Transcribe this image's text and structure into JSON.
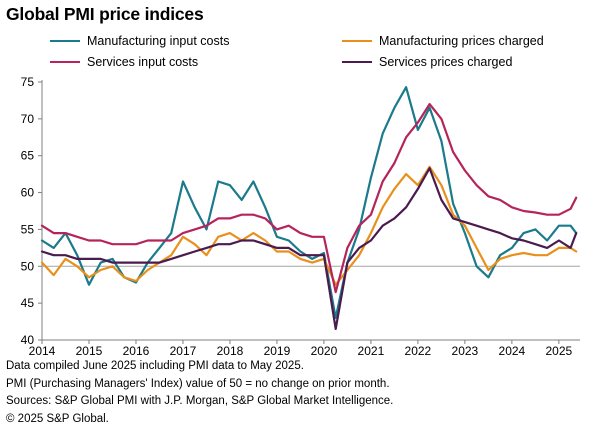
{
  "title": "Global PMI price indices",
  "footnotes": [
    "Data compiled June 2025 including PMI data to May 2025.",
    "PMI (Purchasing Managers' Index) value of 50 = no change on prior month.",
    "Sources: S&P Global PMI with J.P. Morgan, S&P Global Market Intelligence.",
    "© 2025 S&P Global."
  ],
  "chart_data": {
    "type": "line",
    "title": "Global PMI price indices",
    "xlabel": "",
    "ylabel": "",
    "xlim": [
      2014.0,
      2025.45
    ],
    "ylim": [
      40,
      75
    ],
    "x_ticks": [
      "2014",
      "2015",
      "2016",
      "2017",
      "2018",
      "2019",
      "2020",
      "2021",
      "2022",
      "2023",
      "2024",
      "2025"
    ],
    "y_ticks": [
      "40",
      "45",
      "50",
      "55",
      "60",
      "65",
      "70",
      "75"
    ],
    "reference_line": 50,
    "grid": false,
    "legend_position": "top",
    "series": [
      {
        "name": "Manufacturing input costs",
        "color": "#1b7a8c",
        "points": [
          [
            2014.0,
            53.5
          ],
          [
            2014.25,
            52.5
          ],
          [
            2014.5,
            54.5
          ],
          [
            2014.75,
            51.5
          ],
          [
            2015.0,
            47.5
          ],
          [
            2015.25,
            50.5
          ],
          [
            2015.5,
            51.0
          ],
          [
            2015.75,
            48.5
          ],
          [
            2016.0,
            47.8
          ],
          [
            2016.25,
            50.5
          ],
          [
            2016.5,
            52.5
          ],
          [
            2016.75,
            54.5
          ],
          [
            2017.0,
            61.5
          ],
          [
            2017.25,
            58.0
          ],
          [
            2017.5,
            55.0
          ],
          [
            2017.75,
            61.5
          ],
          [
            2018.0,
            61.0
          ],
          [
            2018.25,
            59.0
          ],
          [
            2018.5,
            61.5
          ],
          [
            2018.75,
            58.0
          ],
          [
            2019.0,
            54.0
          ],
          [
            2019.25,
            53.5
          ],
          [
            2019.5,
            52.0
          ],
          [
            2019.75,
            51.0
          ],
          [
            2020.0,
            51.8
          ],
          [
            2020.25,
            43.0
          ],
          [
            2020.5,
            50.5
          ],
          [
            2020.75,
            55.0
          ],
          [
            2021.0,
            62.0
          ],
          [
            2021.25,
            68.0
          ],
          [
            2021.5,
            71.5
          ],
          [
            2021.75,
            74.3
          ],
          [
            2022.0,
            68.5
          ],
          [
            2022.25,
            71.5
          ],
          [
            2022.5,
            67.0
          ],
          [
            2022.75,
            58.5
          ],
          [
            2023.0,
            54.5
          ],
          [
            2023.25,
            50.0
          ],
          [
            2023.5,
            48.5
          ],
          [
            2023.75,
            51.5
          ],
          [
            2024.0,
            52.5
          ],
          [
            2024.25,
            54.5
          ],
          [
            2024.5,
            55.0
          ],
          [
            2024.75,
            53.5
          ],
          [
            2025.0,
            55.5
          ],
          [
            2025.25,
            55.5
          ],
          [
            2025.37,
            54.5
          ]
        ]
      },
      {
        "name": "Manufacturing prices charged",
        "color": "#e8901c",
        "points": [
          [
            2014.0,
            50.5
          ],
          [
            2014.25,
            48.8
          ],
          [
            2014.5,
            51.0
          ],
          [
            2014.75,
            50.0
          ],
          [
            2015.0,
            48.5
          ],
          [
            2015.25,
            49.5
          ],
          [
            2015.5,
            50.0
          ],
          [
            2015.75,
            48.5
          ],
          [
            2016.0,
            48.0
          ],
          [
            2016.25,
            49.5
          ],
          [
            2016.5,
            50.5
          ],
          [
            2016.75,
            51.5
          ],
          [
            2017.0,
            54.0
          ],
          [
            2017.25,
            53.0
          ],
          [
            2017.5,
            51.5
          ],
          [
            2017.75,
            54.0
          ],
          [
            2018.0,
            54.5
          ],
          [
            2018.25,
            53.5
          ],
          [
            2018.5,
            54.5
          ],
          [
            2018.75,
            53.5
          ],
          [
            2019.0,
            52.0
          ],
          [
            2019.25,
            52.0
          ],
          [
            2019.5,
            51.0
          ],
          [
            2019.75,
            50.5
          ],
          [
            2020.0,
            51.0
          ],
          [
            2020.25,
            47.5
          ],
          [
            2020.5,
            49.5
          ],
          [
            2020.75,
            51.5
          ],
          [
            2021.0,
            54.5
          ],
          [
            2021.25,
            58.0
          ],
          [
            2021.5,
            60.5
          ],
          [
            2021.75,
            62.5
          ],
          [
            2022.0,
            61.0
          ],
          [
            2022.25,
            63.5
          ],
          [
            2022.5,
            61.0
          ],
          [
            2022.75,
            57.0
          ],
          [
            2023.0,
            55.5
          ],
          [
            2023.25,
            52.5
          ],
          [
            2023.5,
            49.5
          ],
          [
            2023.75,
            51.0
          ],
          [
            2024.0,
            51.5
          ],
          [
            2024.25,
            51.8
          ],
          [
            2024.5,
            51.5
          ],
          [
            2024.75,
            51.5
          ],
          [
            2025.0,
            52.5
          ],
          [
            2025.25,
            52.5
          ],
          [
            2025.37,
            52.0
          ]
        ]
      },
      {
        "name": "Services input costs",
        "color": "#b5245a",
        "points": [
          [
            2014.0,
            55.5
          ],
          [
            2014.25,
            54.5
          ],
          [
            2014.5,
            54.5
          ],
          [
            2014.75,
            54.0
          ],
          [
            2015.0,
            53.5
          ],
          [
            2015.25,
            53.5
          ],
          [
            2015.5,
            53.0
          ],
          [
            2015.75,
            53.0
          ],
          [
            2016.0,
            53.0
          ],
          [
            2016.25,
            53.5
          ],
          [
            2016.5,
            53.5
          ],
          [
            2016.75,
            53.5
          ],
          [
            2017.0,
            54.5
          ],
          [
            2017.25,
            55.0
          ],
          [
            2017.5,
            55.5
          ],
          [
            2017.75,
            56.5
          ],
          [
            2018.0,
            56.5
          ],
          [
            2018.25,
            57.0
          ],
          [
            2018.5,
            57.0
          ],
          [
            2018.75,
            56.5
          ],
          [
            2019.0,
            55.0
          ],
          [
            2019.25,
            55.5
          ],
          [
            2019.5,
            54.5
          ],
          [
            2019.75,
            54.0
          ],
          [
            2020.0,
            54.0
          ],
          [
            2020.25,
            46.5
          ],
          [
            2020.5,
            52.5
          ],
          [
            2020.75,
            55.5
          ],
          [
            2021.0,
            57.0
          ],
          [
            2021.25,
            61.5
          ],
          [
            2021.5,
            64.0
          ],
          [
            2021.75,
            67.5
          ],
          [
            2022.0,
            69.5
          ],
          [
            2022.25,
            72.0
          ],
          [
            2022.5,
            70.0
          ],
          [
            2022.75,
            65.5
          ],
          [
            2023.0,
            63.0
          ],
          [
            2023.25,
            61.0
          ],
          [
            2023.5,
            59.5
          ],
          [
            2023.75,
            59.0
          ],
          [
            2024.0,
            58.0
          ],
          [
            2024.25,
            57.5
          ],
          [
            2024.5,
            57.3
          ],
          [
            2024.75,
            57.0
          ],
          [
            2025.0,
            57.0
          ],
          [
            2025.25,
            57.8
          ],
          [
            2025.37,
            59.3
          ]
        ]
      },
      {
        "name": "Services prices charged",
        "color": "#4b1a4e",
        "points": [
          [
            2014.0,
            52.0
          ],
          [
            2014.25,
            51.5
          ],
          [
            2014.5,
            51.5
          ],
          [
            2014.75,
            51.0
          ],
          [
            2015.0,
            51.0
          ],
          [
            2015.25,
            51.0
          ],
          [
            2015.5,
            50.5
          ],
          [
            2015.75,
            50.5
          ],
          [
            2016.0,
            50.5
          ],
          [
            2016.25,
            50.5
          ],
          [
            2016.5,
            50.5
          ],
          [
            2016.75,
            51.0
          ],
          [
            2017.0,
            51.5
          ],
          [
            2017.25,
            52.0
          ],
          [
            2017.5,
            52.5
          ],
          [
            2017.75,
            53.0
          ],
          [
            2018.0,
            53.0
          ],
          [
            2018.25,
            53.5
          ],
          [
            2018.5,
            53.5
          ],
          [
            2018.75,
            53.0
          ],
          [
            2019.0,
            52.5
          ],
          [
            2019.25,
            52.5
          ],
          [
            2019.5,
            51.5
          ],
          [
            2019.75,
            51.5
          ],
          [
            2020.0,
            51.5
          ],
          [
            2020.25,
            41.5
          ],
          [
            2020.5,
            50.5
          ],
          [
            2020.75,
            52.5
          ],
          [
            2021.0,
            53.5
          ],
          [
            2021.25,
            55.5
          ],
          [
            2021.5,
            56.5
          ],
          [
            2021.75,
            58.0
          ],
          [
            2022.0,
            60.5
          ],
          [
            2022.25,
            63.3
          ],
          [
            2022.5,
            59.0
          ],
          [
            2022.75,
            56.5
          ],
          [
            2023.0,
            56.0
          ],
          [
            2023.25,
            55.5
          ],
          [
            2023.5,
            55.0
          ],
          [
            2023.75,
            54.5
          ],
          [
            2024.0,
            53.8
          ],
          [
            2024.25,
            53.5
          ],
          [
            2024.5,
            53.0
          ],
          [
            2024.75,
            52.5
          ],
          [
            2025.0,
            53.5
          ],
          [
            2025.25,
            52.5
          ],
          [
            2025.37,
            54.5
          ]
        ]
      }
    ]
  }
}
